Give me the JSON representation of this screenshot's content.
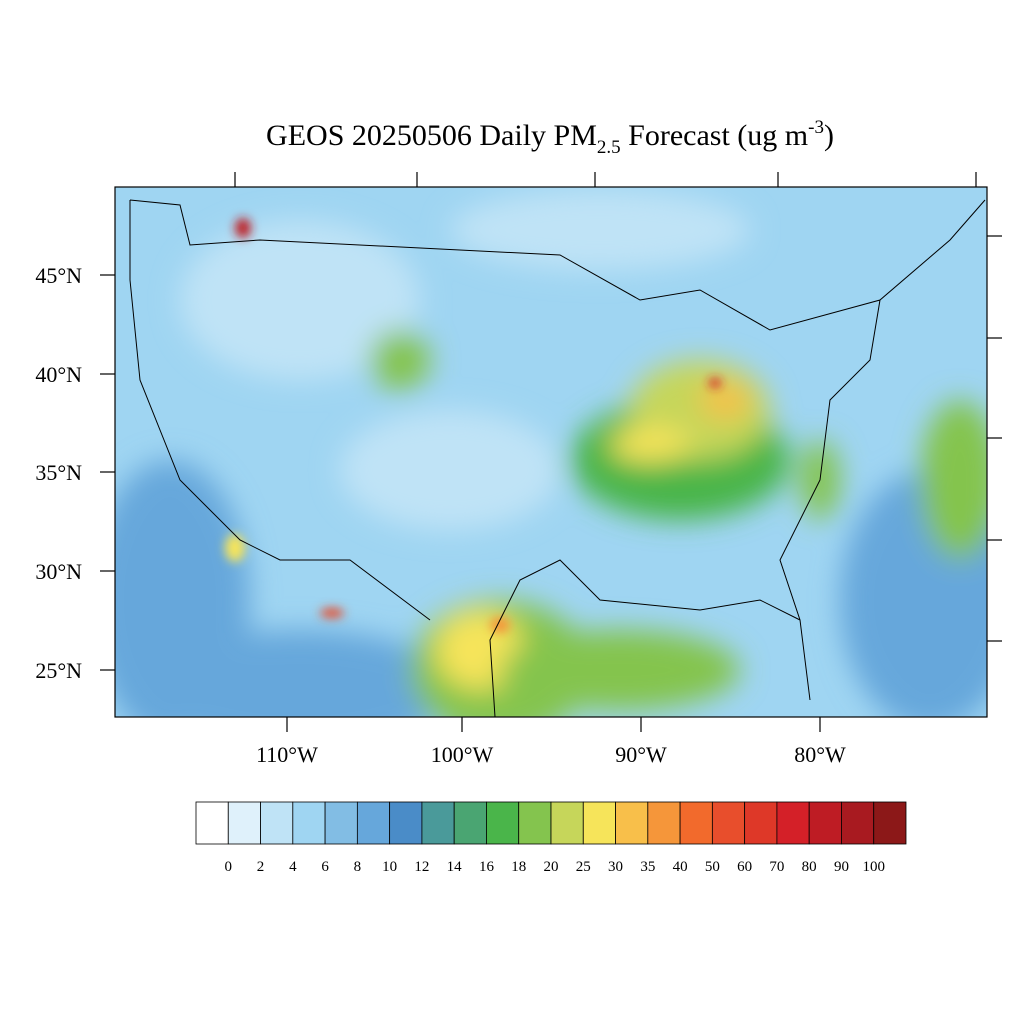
{
  "title": {
    "main": "GEOS 20250506 Daily PM",
    "subscript": "2.5",
    "middle": " Forecast (ug m",
    "superscript": "-3",
    "end": ")"
  },
  "map": {
    "lat_labels": [
      "45°N",
      "40°N",
      "35°N",
      "30°N",
      "25°N"
    ],
    "lon_labels": [
      "110°W",
      "100°W",
      "90°W",
      "80°W"
    ]
  },
  "colorbar": {
    "levels": [
      0,
      2,
      4,
      6,
      8,
      10,
      12,
      14,
      16,
      18,
      20,
      25,
      30,
      35,
      40,
      50,
      60,
      70,
      80,
      90,
      100
    ],
    "colors": [
      "#ffffff",
      "#dff1fb",
      "#bfe3f6",
      "#9fd5f2",
      "#82bde4",
      "#66a7db",
      "#4a8cc8",
      "#4a9a9a",
      "#4aa572",
      "#4ab54a",
      "#84c44e",
      "#c6d65a",
      "#f6e45a",
      "#f8bf4a",
      "#f5963a",
      "#f26a2c",
      "#e84e2c",
      "#de3828",
      "#d42028",
      "#be1c24",
      "#a81a20",
      "#8c1818"
    ]
  }
}
